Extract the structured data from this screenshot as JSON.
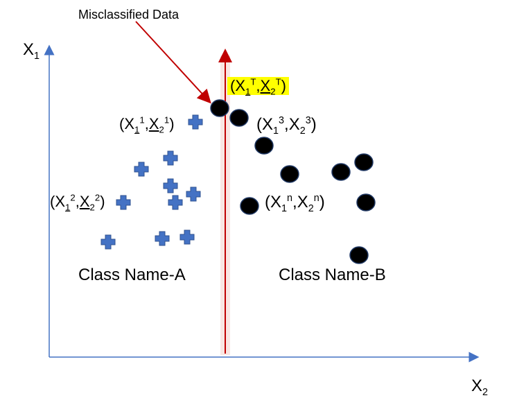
{
  "title_annotation": "Misclassified Data",
  "axes": {
    "y_label_main": "X",
    "y_label_sub": "1",
    "x_label_main": "X",
    "x_label_sub": "2"
  },
  "classes": {
    "a_label": "Class Name-A",
    "b_label": "Class Name-B"
  },
  "point_labels": {
    "p1": {
      "x": "X",
      "s1": "1",
      "t1": "1",
      "y": "X",
      "s2": "2",
      "t2": "1"
    },
    "p2": {
      "x": "X",
      "s1": "1",
      "t1": "2",
      "y": "X",
      "s2": "2",
      "t2": "2"
    },
    "p3": {
      "x": "X",
      "s1": "1",
      "t1": "3",
      "y": "X",
      "s2": "2",
      "t2": "3"
    },
    "pn": {
      "x": "X",
      "s1": "1",
      "t1": "n",
      "y": "X",
      "s2": "2",
      "t2": "n"
    },
    "pT": {
      "x": "X",
      "s1": "1",
      "t1": "T",
      "y": "X",
      "s2": "2",
      "t2": "T"
    }
  },
  "colors": {
    "axis": "#4472c4",
    "divider": "#c00000",
    "class_a": "#4472c4",
    "class_b": "#000000",
    "highlight": "#ffff00"
  }
}
